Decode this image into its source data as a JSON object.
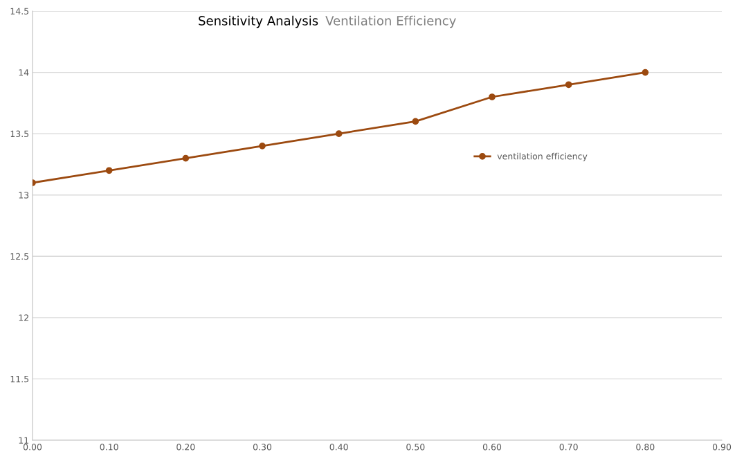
{
  "chart_data": {
    "type": "line",
    "title": "Sensitivity Analysis",
    "subtitle": "Ventilation Efficiency",
    "x": [
      0,
      0.1,
      0.2,
      0.3,
      0.4,
      0.5,
      0.6,
      0.7,
      0.8
    ],
    "series": [
      {
        "name": "ventilation efficiency",
        "color": "#9c4a10",
        "values": [
          13.1,
          13.2,
          13.3,
          13.4,
          13.5,
          13.6,
          13.8,
          13.9,
          14.0
        ]
      }
    ],
    "xlim": [
      0,
      0.9
    ],
    "xticks": [
      {
        "value": 0,
        "label": "0.00"
      },
      {
        "value": 0.1,
        "label": "0.10"
      },
      {
        "value": 0.2,
        "label": "0.20"
      },
      {
        "value": 0.3,
        "label": "0.30"
      },
      {
        "value": 0.4,
        "label": "0.40"
      },
      {
        "value": 0.5,
        "label": "0.50"
      },
      {
        "value": 0.6,
        "label": "0.60"
      },
      {
        "value": 0.7,
        "label": "0.70"
      },
      {
        "value": 0.8,
        "label": "0.80"
      },
      {
        "value": 0.9,
        "label": "0.90"
      }
    ],
    "ylim": [
      11,
      14.5
    ],
    "yticks": [
      11,
      11.5,
      12,
      12.5,
      13,
      13.5,
      14,
      14.5
    ],
    "grid": "y",
    "legend": "right",
    "marker": "circle",
    "line_style": "solid"
  }
}
